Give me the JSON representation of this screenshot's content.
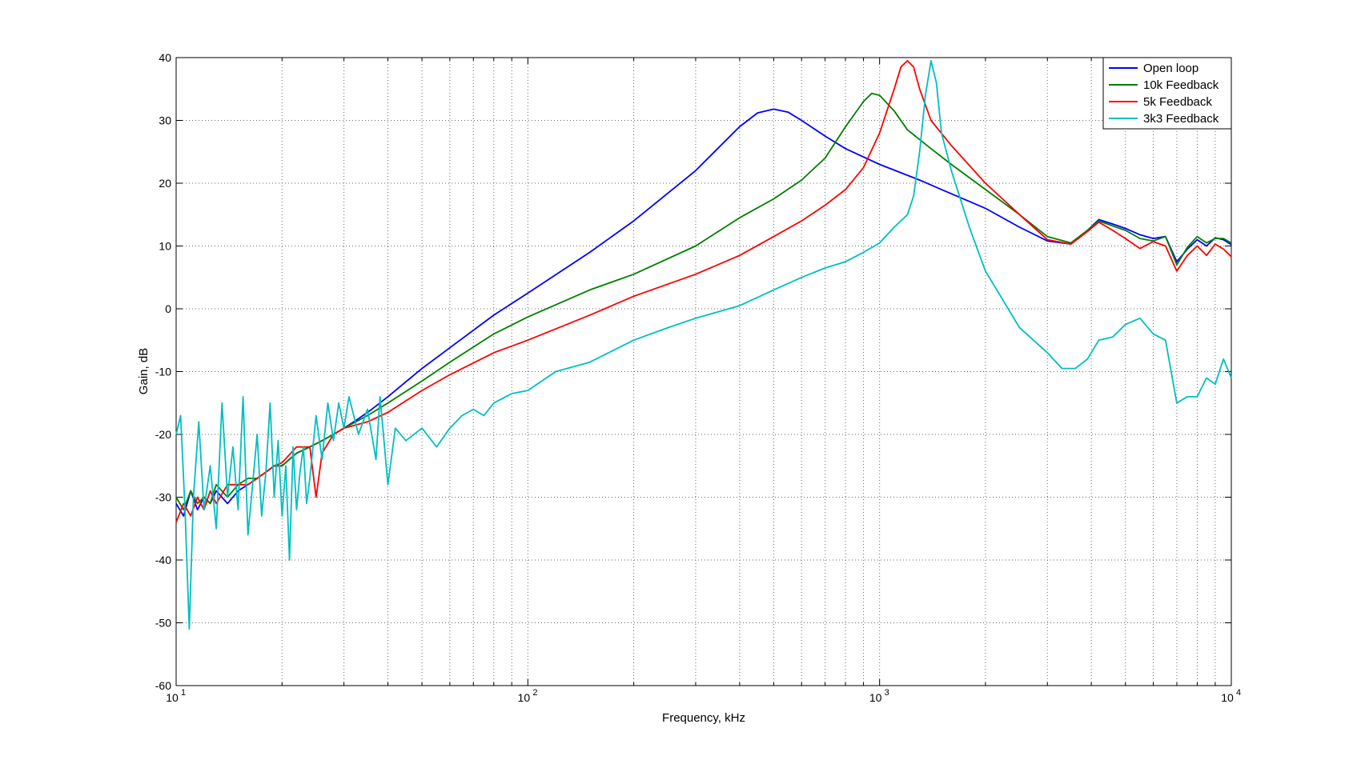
{
  "chart_data": {
    "type": "line",
    "title": "",
    "xlabel": "Frequency, kHz",
    "ylabel": "Gain, dB",
    "xscale": "log",
    "xlim": [
      10,
      10000
    ],
    "ylim": [
      -60,
      40
    ],
    "grid": true,
    "legend_position": "top-right",
    "x_tick_labels": [
      {
        "base": "10",
        "exp": "1"
      },
      {
        "base": "10",
        "exp": "2"
      },
      {
        "base": "10",
        "exp": "3"
      },
      {
        "base": "10",
        "exp": "4"
      }
    ],
    "y_ticks": [
      -60,
      -50,
      -40,
      -30,
      -20,
      -10,
      0,
      10,
      20,
      30,
      40
    ],
    "series": [
      {
        "name": "Open loop",
        "color": "#0000ff",
        "points": [
          [
            10,
            -31
          ],
          [
            10.5,
            -33
          ],
          [
            11,
            -29
          ],
          [
            11.5,
            -32
          ],
          [
            12,
            -30
          ],
          [
            12.5,
            -31
          ],
          [
            13,
            -29
          ],
          [
            14,
            -31
          ],
          [
            15,
            -29
          ],
          [
            16,
            -28
          ],
          [
            17,
            -27
          ],
          [
            18,
            -26
          ],
          [
            19,
            -25
          ],
          [
            20,
            -25
          ],
          [
            22,
            -23
          ],
          [
            24,
            -22
          ],
          [
            26,
            -21
          ],
          [
            28,
            -20
          ],
          [
            30,
            -19
          ],
          [
            33,
            -17.5
          ],
          [
            36,
            -16
          ],
          [
            40,
            -14
          ],
          [
            50,
            -9.5
          ],
          [
            60,
            -6.2
          ],
          [
            80,
            -1
          ],
          [
            100,
            2.5
          ],
          [
            150,
            9
          ],
          [
            200,
            14
          ],
          [
            300,
            22
          ],
          [
            400,
            29
          ],
          [
            450,
            31.2
          ],
          [
            500,
            31.8
          ],
          [
            550,
            31.3
          ],
          [
            600,
            30
          ],
          [
            700,
            27.5
          ],
          [
            800,
            25.5
          ],
          [
            1000,
            23
          ],
          [
            1300,
            20.5
          ],
          [
            1500,
            19
          ],
          [
            2000,
            16
          ],
          [
            2500,
            13
          ],
          [
            3000,
            10.8
          ],
          [
            3500,
            10.3
          ],
          [
            3900,
            12.5
          ],
          [
            4200,
            14.2
          ],
          [
            4600,
            13.5
          ],
          [
            5000,
            12.8
          ],
          [
            5500,
            11.8
          ],
          [
            6000,
            11.2
          ],
          [
            6500,
            11.5
          ],
          [
            7000,
            7.5
          ],
          [
            7500,
            9.5
          ],
          [
            8000,
            11
          ],
          [
            8500,
            10
          ],
          [
            9000,
            11.3
          ],
          [
            9500,
            11
          ],
          [
            10000,
            10.2
          ]
        ]
      },
      {
        "name": "10k Feedback",
        "color": "#007f00",
        "points": [
          [
            10,
            -30
          ],
          [
            10.5,
            -32
          ],
          [
            11,
            -29
          ],
          [
            11.5,
            -31
          ],
          [
            12,
            -30
          ],
          [
            12.5,
            -31
          ],
          [
            13,
            -28
          ],
          [
            14,
            -30
          ],
          [
            15,
            -28
          ],
          [
            16,
            -27
          ],
          [
            17,
            -27
          ],
          [
            18,
            -26
          ],
          [
            19,
            -25
          ],
          [
            20,
            -25
          ],
          [
            22,
            -23
          ],
          [
            24,
            -22
          ],
          [
            26,
            -21
          ],
          [
            28,
            -20
          ],
          [
            30,
            -19
          ],
          [
            35,
            -17
          ],
          [
            40,
            -15
          ],
          [
            50,
            -11.5
          ],
          [
            60,
            -8.5
          ],
          [
            80,
            -4
          ],
          [
            100,
            -1.3
          ],
          [
            150,
            3
          ],
          [
            200,
            5.5
          ],
          [
            300,
            10
          ],
          [
            400,
            14.5
          ],
          [
            500,
            17.5
          ],
          [
            600,
            20.5
          ],
          [
            700,
            24
          ],
          [
            800,
            29
          ],
          [
            900,
            33
          ],
          [
            950,
            34.3
          ],
          [
            1000,
            34
          ],
          [
            1100,
            31.5
          ],
          [
            1200,
            28.5
          ],
          [
            1400,
            25.5
          ],
          [
            1600,
            23
          ],
          [
            2000,
            19
          ],
          [
            2500,
            15
          ],
          [
            3000,
            11.5
          ],
          [
            3500,
            10.5
          ],
          [
            3900,
            12.5
          ],
          [
            4200,
            14
          ],
          [
            4600,
            13.2
          ],
          [
            5000,
            12.5
          ],
          [
            5500,
            11.2
          ],
          [
            6000,
            10.8
          ],
          [
            6500,
            11.5
          ],
          [
            7000,
            7
          ],
          [
            7500,
            9.8
          ],
          [
            8000,
            11.5
          ],
          [
            8500,
            10.5
          ],
          [
            9000,
            11.2
          ],
          [
            9500,
            11.2
          ],
          [
            10000,
            10.5
          ]
        ]
      },
      {
        "name": "5k Feedback",
        "color": "#ff0000",
        "points": [
          [
            10,
            -34
          ],
          [
            10.5,
            -31
          ],
          [
            11,
            -33
          ],
          [
            11.5,
            -30
          ],
          [
            12,
            -32
          ],
          [
            12.5,
            -29
          ],
          [
            13,
            -31
          ],
          [
            14,
            -28
          ],
          [
            15,
            -28
          ],
          [
            16,
            -28
          ],
          [
            17,
            -27
          ],
          [
            18,
            -26
          ],
          [
            19,
            -25
          ],
          [
            20,
            -24.5
          ],
          [
            22,
            -22
          ],
          [
            24,
            -22
          ],
          [
            25,
            -30
          ],
          [
            26,
            -23
          ],
          [
            28,
            -20
          ],
          [
            30,
            -19
          ],
          [
            35,
            -18
          ],
          [
            40,
            -16.5
          ],
          [
            50,
            -13
          ],
          [
            60,
            -10.5
          ],
          [
            80,
            -7
          ],
          [
            100,
            -5
          ],
          [
            150,
            -1
          ],
          [
            200,
            2
          ],
          [
            300,
            5.5
          ],
          [
            400,
            8.5
          ],
          [
            500,
            11.5
          ],
          [
            600,
            14
          ],
          [
            700,
            16.5
          ],
          [
            800,
            19
          ],
          [
            900,
            22.5
          ],
          [
            1000,
            28
          ],
          [
            1100,
            35
          ],
          [
            1150,
            38.5
          ],
          [
            1200,
            39.5
          ],
          [
            1250,
            38.5
          ],
          [
            1300,
            35
          ],
          [
            1400,
            30
          ],
          [
            1600,
            26
          ],
          [
            2000,
            20
          ],
          [
            2500,
            15
          ],
          [
            3000,
            11
          ],
          [
            3500,
            10.3
          ],
          [
            3900,
            12.3
          ],
          [
            4200,
            13.8
          ],
          [
            4600,
            12.5
          ],
          [
            5000,
            11.2
          ],
          [
            5500,
            9.6
          ],
          [
            6000,
            10.7
          ],
          [
            6500,
            10
          ],
          [
            7000,
            6
          ],
          [
            7500,
            8.5
          ],
          [
            8000,
            10
          ],
          [
            8500,
            8.5
          ],
          [
            9000,
            10.3
          ],
          [
            9500,
            9.5
          ],
          [
            10000,
            8.3
          ]
        ]
      },
      {
        "name": "3k3 Feedback",
        "color": "#00bfbf",
        "points": [
          [
            10,
            -20
          ],
          [
            10.3,
            -17
          ],
          [
            10.6,
            -32
          ],
          [
            10.9,
            -51
          ],
          [
            11.2,
            -30
          ],
          [
            11.6,
            -18
          ],
          [
            12,
            -32
          ],
          [
            12.5,
            -25
          ],
          [
            13,
            -35
          ],
          [
            13.5,
            -15
          ],
          [
            14,
            -30
          ],
          [
            14.5,
            -22
          ],
          [
            15,
            -32
          ],
          [
            15.5,
            -14
          ],
          [
            16,
            -36
          ],
          [
            16.5,
            -28
          ],
          [
            17,
            -20
          ],
          [
            17.5,
            -33
          ],
          [
            18,
            -26
          ],
          [
            18.5,
            -15
          ],
          [
            19,
            -30
          ],
          [
            19.5,
            -21
          ],
          [
            20,
            -33
          ],
          [
            20.5,
            -25
          ],
          [
            21,
            -40
          ],
          [
            21.5,
            -22
          ],
          [
            22,
            -32
          ],
          [
            22.5,
            -26
          ],
          [
            23,
            -22
          ],
          [
            23.5,
            -31
          ],
          [
            24,
            -27
          ],
          [
            25,
            -17
          ],
          [
            26,
            -24
          ],
          [
            27,
            -15
          ],
          [
            28,
            -21
          ],
          [
            29,
            -15
          ],
          [
            30,
            -19
          ],
          [
            31,
            -14
          ],
          [
            33,
            -20
          ],
          [
            35,
            -16
          ],
          [
            37,
            -24
          ],
          [
            38,
            -14
          ],
          [
            40,
            -28
          ],
          [
            42,
            -19
          ],
          [
            45,
            -21
          ],
          [
            50,
            -19
          ],
          [
            55,
            -22
          ],
          [
            60,
            -19
          ],
          [
            65,
            -17
          ],
          [
            70,
            -16
          ],
          [
            75,
            -17
          ],
          [
            80,
            -15
          ],
          [
            90,
            -13.5
          ],
          [
            100,
            -13
          ],
          [
            120,
            -10
          ],
          [
            150,
            -8.5
          ],
          [
            200,
            -5
          ],
          [
            250,
            -3
          ],
          [
            300,
            -1.5
          ],
          [
            400,
            0.5
          ],
          [
            500,
            3
          ],
          [
            600,
            5
          ],
          [
            700,
            6.5
          ],
          [
            800,
            7.5
          ],
          [
            900,
            9
          ],
          [
            1000,
            10.5
          ],
          [
            1100,
            13
          ],
          [
            1200,
            15
          ],
          [
            1250,
            18
          ],
          [
            1300,
            25
          ],
          [
            1350,
            34
          ],
          [
            1400,
            39.5
          ],
          [
            1450,
            36
          ],
          [
            1500,
            28
          ],
          [
            1600,
            22
          ],
          [
            1800,
            13
          ],
          [
            2000,
            6
          ],
          [
            2500,
            -3
          ],
          [
            3000,
            -7
          ],
          [
            3300,
            -9.5
          ],
          [
            3600,
            -9.5
          ],
          [
            3900,
            -8
          ],
          [
            4200,
            -5
          ],
          [
            4600,
            -4.5
          ],
          [
            5000,
            -2.5
          ],
          [
            5500,
            -1.5
          ],
          [
            6000,
            -4
          ],
          [
            6500,
            -5
          ],
          [
            7000,
            -15
          ],
          [
            7500,
            -14
          ],
          [
            8000,
            -14
          ],
          [
            8500,
            -11
          ],
          [
            9000,
            -12
          ],
          [
            9500,
            -8
          ],
          [
            10000,
            -11
          ]
        ]
      }
    ]
  }
}
